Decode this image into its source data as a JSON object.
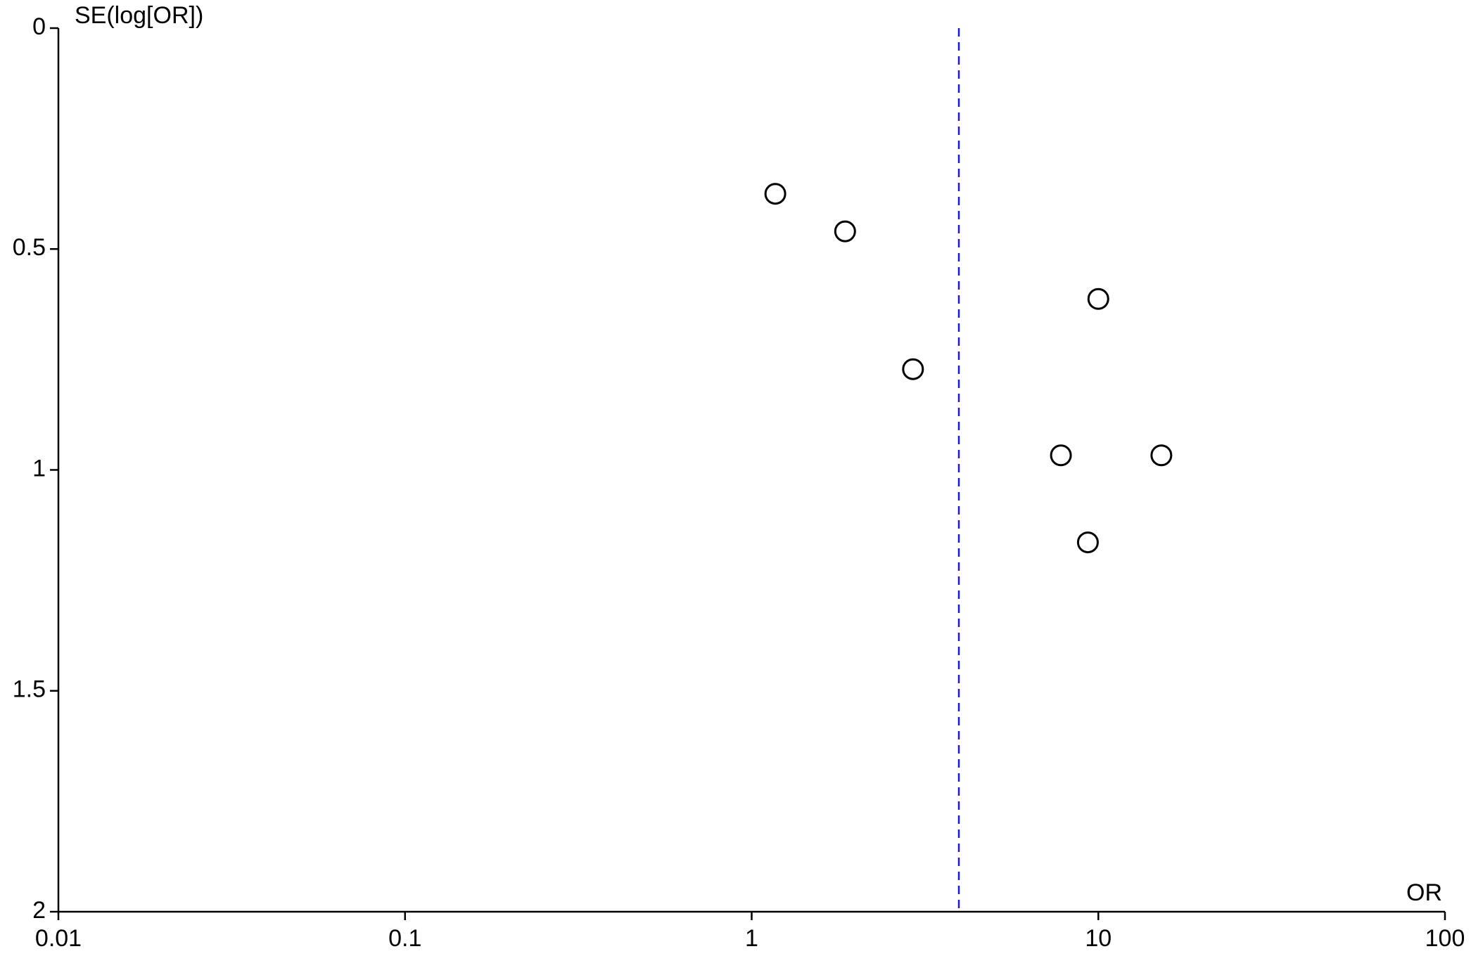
{
  "chart_data": {
    "type": "scatter",
    "x_label": "OR",
    "y_label": "SE(log[OR])",
    "x_log": true,
    "y_reversed": true,
    "xlim": [
      0.01,
      100
    ],
    "xticks": [
      0.01,
      0.1,
      1,
      10,
      100
    ],
    "ylim": [
      0,
      2
    ],
    "yticks": [
      0,
      0.5,
      1,
      1.5,
      2
    ],
    "reference_line": {
      "x": 3.96,
      "color": "#1a1acc",
      "style": "dashed"
    },
    "series": [
      {
        "color": "#000000",
        "x": [
          1.17,
          1.86,
          2.92,
          10,
          7.8,
          15.2,
          9.33
        ],
        "values": [
          0.375,
          0.46,
          0.772,
          0.613,
          0.967,
          0.967,
          1.164
        ]
      }
    ]
  }
}
